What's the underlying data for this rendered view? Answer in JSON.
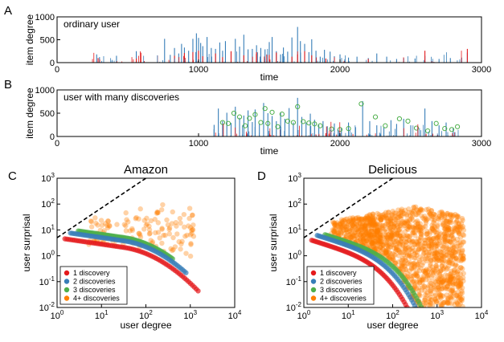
{
  "colors": {
    "red": "#e41a1c",
    "blue": "#377eb8",
    "green": "#4daf4a",
    "orange": "#ff7f00",
    "annot": "#4daf4a"
  },
  "chart_data": [
    {
      "panel": "A",
      "type": "bar",
      "annotation": "ordinary user",
      "xlabel": "time",
      "ylabel": "item degree",
      "xlim": [
        0,
        3000
      ],
      "ylim": [
        0,
        1000
      ],
      "xticks": [
        "0",
        "1000",
        "2000",
        "3000"
      ],
      "yticks": [
        "0",
        "500",
        "1000"
      ],
      "series": [
        {
          "name": "item degree (blue)",
          "color": "blue",
          "x": [
            280,
            300,
            420,
            560,
            760,
            800,
            830,
            860,
            880,
            900,
            930,
            960,
            985,
            1000,
            1015,
            1030,
            1060,
            1090,
            1120,
            1150,
            1170,
            1190,
            1230,
            1260,
            1290,
            1320,
            1350,
            1380,
            1410,
            1440,
            1470,
            1500,
            1520,
            1550,
            1580,
            1600,
            1630,
            1660,
            1700,
            1720,
            1750,
            1780,
            1800,
            1830,
            1860,
            1890,
            1930,
            1960,
            2000,
            2060,
            2120,
            2200,
            2260,
            2330,
            2400,
            2450,
            2530,
            2600,
            2700,
            2780,
            2860,
            2900
          ],
          "y": [
            180,
            120,
            150,
            250,
            520,
            170,
            320,
            200,
            410,
            330,
            260,
            520,
            640,
            540,
            430,
            360,
            560,
            320,
            300,
            440,
            260,
            470,
            230,
            520,
            350,
            610,
            290,
            300,
            380,
            320,
            290,
            450,
            560,
            250,
            180,
            330,
            240,
            550,
            780,
            470,
            410,
            230,
            510,
            260,
            130,
            280,
            240,
            140,
            180,
            110,
            130,
            100,
            200,
            130,
            80,
            100,
            90,
            150,
            80,
            100,
            110,
            220
          ]
        },
        {
          "name": "item degree (red)",
          "color": "red",
          "x": [
            290,
            560,
            830,
            900,
            960,
            1000,
            1030,
            1120,
            1170,
            1230,
            1320,
            1410,
            1500,
            1550,
            1660,
            1700,
            1750,
            1800,
            1900,
            2200,
            2600,
            2900
          ],
          "y": [
            100,
            90,
            150,
            210,
            230,
            260,
            140,
            200,
            120,
            250,
            160,
            230,
            170,
            220,
            130,
            180,
            250,
            160,
            90,
            80,
            260,
            300
          ]
        }
      ]
    },
    {
      "panel": "B",
      "type": "bar",
      "annotation": "user with many discoveries",
      "xlabel": "time",
      "ylabel": "item degree",
      "xlim": [
        0,
        3000
      ],
      "ylim": [
        0,
        1000
      ],
      "xticks": [
        "0",
        "1000",
        "2000",
        "3000"
      ],
      "yticks": [
        "0",
        "500",
        "1000"
      ],
      "series": [
        {
          "name": "item degree (blue)",
          "color": "blue",
          "x": [
            1110,
            1140,
            1170,
            1200,
            1230,
            1260,
            1290,
            1320,
            1350,
            1380,
            1400,
            1430,
            1460,
            1490,
            1520,
            1550,
            1580,
            1610,
            1640,
            1670,
            1700,
            1730,
            1760,
            1790,
            1820,
            1850,
            1880,
            1910,
            1960,
            2010,
            2060,
            2110,
            2160,
            2210,
            2260,
            2310,
            2360,
            2400,
            2450,
            2500,
            2550,
            2600,
            2650,
            2700,
            2750,
            2800
          ],
          "y": [
            250,
            600,
            330,
            510,
            290,
            640,
            400,
            450,
            560,
            310,
            580,
            280,
            720,
            500,
            440,
            330,
            520,
            380,
            610,
            300,
            830,
            420,
            300,
            490,
            360,
            250,
            330,
            220,
            280,
            180,
            300,
            200,
            760,
            330,
            240,
            200,
            350,
            270,
            380,
            240,
            220,
            600,
            330,
            240,
            300,
            180
          ]
        },
        {
          "name": "discoveries",
          "color": "annot",
          "marker": "circle-open",
          "x": [
            1170,
            1210,
            1250,
            1290,
            1330,
            1360,
            1400,
            1440,
            1470,
            1490,
            1520,
            1560,
            1590,
            1630,
            1670,
            1700,
            1740,
            1780,
            1820,
            1860,
            1940,
            2000,
            2060,
            2150,
            2250,
            2320,
            2420,
            2480,
            2540,
            2620,
            2680,
            2740,
            2790,
            2830
          ],
          "y": [
            300,
            280,
            500,
            420,
            230,
            390,
            470,
            300,
            600,
            280,
            520,
            210,
            480,
            330,
            300,
            640,
            320,
            290,
            270,
            230,
            160,
            150,
            170,
            700,
            420,
            230,
            380,
            330,
            180,
            120,
            280,
            170,
            150,
            210
          ]
        },
        {
          "name": "item degree (red)",
          "color": "red",
          "x": [
            1500,
            1900,
            2600
          ],
          "y": [
            60,
            70,
            60
          ]
        }
      ]
    },
    {
      "panel": "C",
      "type": "scatter",
      "title": "Amazon",
      "xlabel": "user degree",
      "ylabel": "user surprisal",
      "xscale": "log",
      "yscale": "log",
      "xlim": [
        1,
        10000
      ],
      "ylim": [
        0.01,
        1000
      ],
      "xticks": [
        "10^0",
        "10^1",
        "10^2",
        "10^3",
        "10^4"
      ],
      "yticks": [
        "10^-2",
        "10^-1",
        "10^0",
        "10^1",
        "10^2",
        "10^3"
      ],
      "reference_line": {
        "style": "dashed",
        "x": [
          1,
          100
        ],
        "y": [
          5,
          1000
        ]
      },
      "legend": {
        "placement": "lower-left",
        "entries": [
          "1 discovery",
          "2 discoveries",
          "3 discoveries",
          "4+ discoveries"
        ]
      },
      "series": [
        {
          "name": "1 discovery",
          "color": "red",
          "x_range": [
            1.5,
            1500
          ],
          "y_start": 5,
          "decay": "curve"
        },
        {
          "name": "2 discoveries",
          "color": "blue",
          "x_range": [
            2,
            800
          ],
          "y_start": 9,
          "decay": "curve"
        },
        {
          "name": "3 discoveries",
          "color": "green",
          "x_range": [
            3,
            400
          ],
          "y_start": 12,
          "decay": "curve"
        },
        {
          "name": "4+ discoveries",
          "color": "orange",
          "x_range": [
            5,
            1200
          ],
          "y_range": [
            0.3,
            200
          ],
          "density": "sparse"
        }
      ]
    },
    {
      "panel": "D",
      "type": "scatter",
      "title": "Delicious",
      "xlabel": "user degree",
      "ylabel": "user surprisal",
      "xscale": "log",
      "yscale": "log",
      "xlim": [
        1,
        10000
      ],
      "ylim": [
        0.01,
        1000
      ],
      "xticks": [
        "10^0",
        "10^1",
        "10^2",
        "10^3",
        "10^4"
      ],
      "yticks": [
        "10^-2",
        "10^-1",
        "10^0",
        "10^1",
        "10^2",
        "10^3"
      ],
      "reference_line": {
        "style": "dashed",
        "x": [
          1,
          100
        ],
        "y": [
          5,
          1000
        ]
      },
      "legend": {
        "placement": "lower-left",
        "entries": [
          "1 discovery",
          "2 discoveries",
          "3 discoveries",
          "4+ discoveries"
        ]
      },
      "series": [
        {
          "name": "1 discovery",
          "color": "red",
          "x_range": [
            1.5,
            400
          ],
          "y_start": 5,
          "decay": "steep"
        },
        {
          "name": "2 discoveries",
          "color": "blue",
          "x_range": [
            2,
            550
          ],
          "y_start": 9,
          "decay": "steep"
        },
        {
          "name": "3 discoveries",
          "color": "green",
          "x_range": [
            3,
            700
          ],
          "y_start": 12,
          "decay": "steep"
        },
        {
          "name": "4+ discoveries",
          "color": "orange",
          "x_range": [
            4,
            4000
          ],
          "y_range": [
            0.01,
            150
          ],
          "density": "dense"
        }
      ]
    }
  ]
}
